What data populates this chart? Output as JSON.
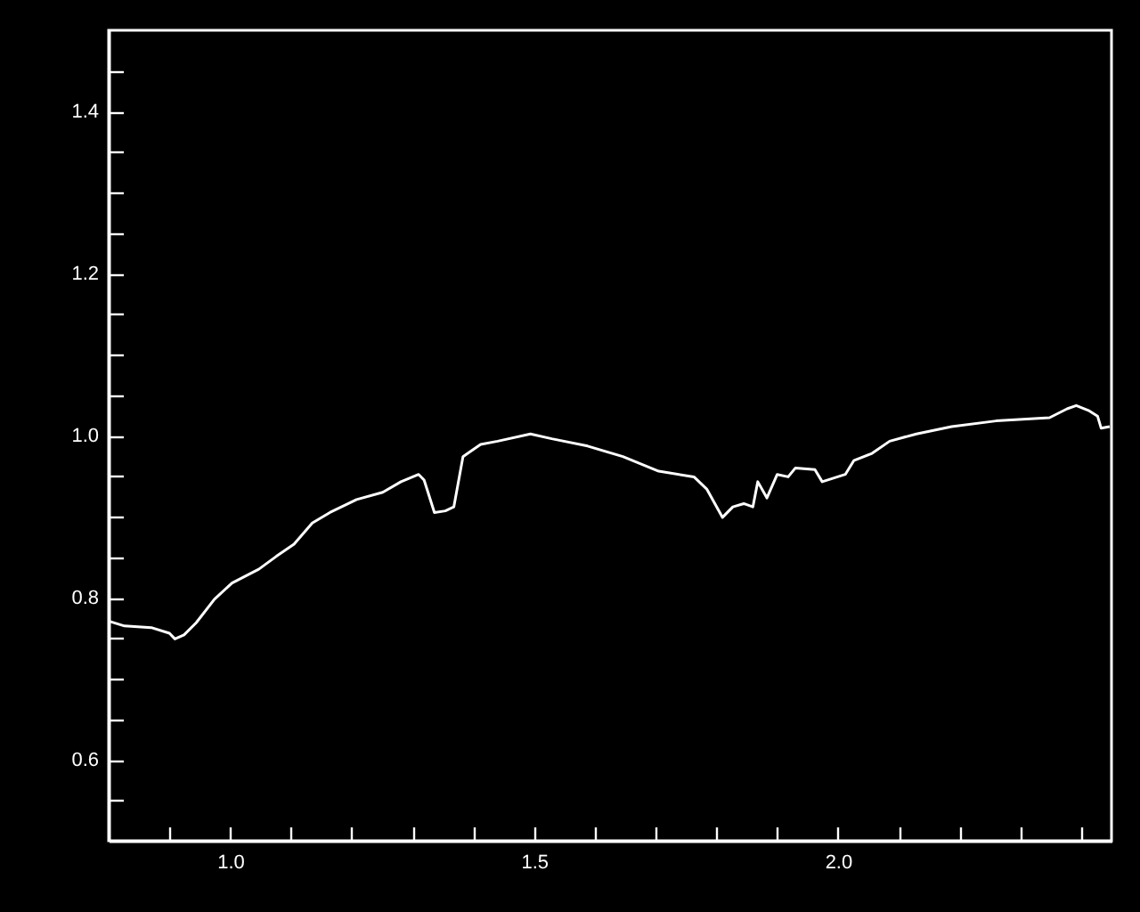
{
  "chart_data": {
    "type": "line",
    "grid": false,
    "marker": "none",
    "line_style": "solid",
    "xlim": [
      0.8,
      2.45
    ],
    "ylim": [
      0.5,
      1.5
    ],
    "xticks": [
      {
        "value": 0.9,
        "label": null
      },
      {
        "value": 1.0,
        "label": "1.0"
      },
      {
        "value": 1.1,
        "label": null
      },
      {
        "value": 1.2,
        "label": null
      },
      {
        "value": 1.3,
        "label": null
      },
      {
        "value": 1.4,
        "label": null
      },
      {
        "value": 1.5,
        "label": "1.5"
      },
      {
        "value": 1.6,
        "label": null
      },
      {
        "value": 1.7,
        "label": null
      },
      {
        "value": 1.8,
        "label": null
      },
      {
        "value": 1.9,
        "label": null
      },
      {
        "value": 2.0,
        "label": "2.0"
      },
      {
        "value": 2.1,
        "label": null
      },
      {
        "value": 2.2,
        "label": null
      },
      {
        "value": 2.3,
        "label": null
      },
      {
        "value": 2.4,
        "label": null
      }
    ],
    "yticks": [
      {
        "value": 0.55,
        "label": null
      },
      {
        "value": 0.6,
        "label": "0.6"
      },
      {
        "value": 0.65,
        "label": null
      },
      {
        "value": 0.7,
        "label": null
      },
      {
        "value": 0.75,
        "label": null
      },
      {
        "value": 0.8,
        "label": "0.8"
      },
      {
        "value": 0.85,
        "label": null
      },
      {
        "value": 0.9,
        "label": null
      },
      {
        "value": 0.95,
        "label": null
      },
      {
        "value": 1.0,
        "label": "1.0"
      },
      {
        "value": 1.05,
        "label": null
      },
      {
        "value": 1.1,
        "label": null
      },
      {
        "value": 1.15,
        "label": null
      },
      {
        "value": 1.2,
        "label": "1.2"
      },
      {
        "value": 1.25,
        "label": null
      },
      {
        "value": 1.3,
        "label": null
      },
      {
        "value": 1.35,
        "label": null
      },
      {
        "value": 1.4,
        "label": "1.4"
      },
      {
        "value": 1.45,
        "label": null
      }
    ],
    "series": [
      {
        "color": "#ffffff",
        "x": [
          0.8,
          0.826,
          0.87,
          0.9,
          0.909,
          0.924,
          0.944,
          0.974,
          1.003,
          1.047,
          1.076,
          1.105,
          1.135,
          1.164,
          1.208,
          1.251,
          1.281,
          1.31,
          1.319,
          1.336,
          1.354,
          1.368,
          1.383,
          1.412,
          1.44,
          1.494,
          1.529,
          1.588,
          1.646,
          1.705,
          1.763,
          1.784,
          1.81,
          1.827,
          1.845,
          1.86,
          1.868,
          1.883,
          1.9,
          1.918,
          1.93,
          1.962,
          1.974,
          2.012,
          2.026,
          2.056,
          2.085,
          2.129,
          2.187,
          2.26,
          2.348,
          2.377,
          2.392,
          2.412,
          2.427,
          2.433,
          2.447
        ],
        "values": [
          0.771,
          0.765,
          0.763,
          0.756,
          0.749,
          0.754,
          0.769,
          0.798,
          0.818,
          0.835,
          0.851,
          0.866,
          0.892,
          0.905,
          0.921,
          0.93,
          0.943,
          0.952,
          0.945,
          0.905,
          0.907,
          0.912,
          0.974,
          0.989,
          0.993,
          1.002,
          0.996,
          0.987,
          0.974,
          0.956,
          0.949,
          0.934,
          0.899,
          0.912,
          0.916,
          0.912,
          0.943,
          0.923,
          0.952,
          0.949,
          0.96,
          0.958,
          0.943,
          0.952,
          0.969,
          0.978,
          0.993,
          1.002,
          1.011,
          1.018,
          1.022,
          1.033,
          1.037,
          1.031,
          1.024,
          1.009,
          1.011
        ]
      }
    ]
  }
}
